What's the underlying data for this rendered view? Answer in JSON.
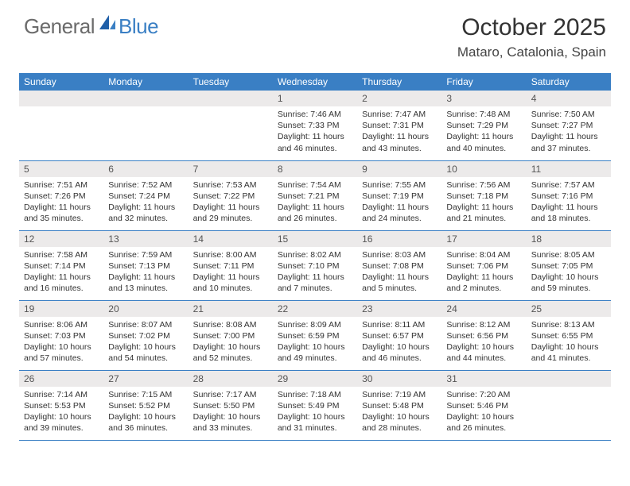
{
  "logo": {
    "text_gray": "General",
    "text_blue": "Blue"
  },
  "title": "October 2025",
  "location": "Mataro, Catalonia, Spain",
  "colors": {
    "header_bg": "#3a7fc4",
    "header_text": "#ffffff",
    "daynum_bg": "#eceaea",
    "row_border": "#3a7fc4",
    "body_text": "#333333",
    "logo_gray": "#6b6b6b",
    "logo_blue": "#3a7fc4",
    "page_bg": "#ffffff"
  },
  "day_headers": [
    "Sunday",
    "Monday",
    "Tuesday",
    "Wednesday",
    "Thursday",
    "Friday",
    "Saturday"
  ],
  "weeks": [
    [
      {
        "num": "",
        "sunrise": "",
        "sunset": "",
        "daylight": ""
      },
      {
        "num": "",
        "sunrise": "",
        "sunset": "",
        "daylight": ""
      },
      {
        "num": "",
        "sunrise": "",
        "sunset": "",
        "daylight": ""
      },
      {
        "num": "1",
        "sunrise": "Sunrise: 7:46 AM",
        "sunset": "Sunset: 7:33 PM",
        "daylight": "Daylight: 11 hours and 46 minutes."
      },
      {
        "num": "2",
        "sunrise": "Sunrise: 7:47 AM",
        "sunset": "Sunset: 7:31 PM",
        "daylight": "Daylight: 11 hours and 43 minutes."
      },
      {
        "num": "3",
        "sunrise": "Sunrise: 7:48 AM",
        "sunset": "Sunset: 7:29 PM",
        "daylight": "Daylight: 11 hours and 40 minutes."
      },
      {
        "num": "4",
        "sunrise": "Sunrise: 7:50 AM",
        "sunset": "Sunset: 7:27 PM",
        "daylight": "Daylight: 11 hours and 37 minutes."
      }
    ],
    [
      {
        "num": "5",
        "sunrise": "Sunrise: 7:51 AM",
        "sunset": "Sunset: 7:26 PM",
        "daylight": "Daylight: 11 hours and 35 minutes."
      },
      {
        "num": "6",
        "sunrise": "Sunrise: 7:52 AM",
        "sunset": "Sunset: 7:24 PM",
        "daylight": "Daylight: 11 hours and 32 minutes."
      },
      {
        "num": "7",
        "sunrise": "Sunrise: 7:53 AM",
        "sunset": "Sunset: 7:22 PM",
        "daylight": "Daylight: 11 hours and 29 minutes."
      },
      {
        "num": "8",
        "sunrise": "Sunrise: 7:54 AM",
        "sunset": "Sunset: 7:21 PM",
        "daylight": "Daylight: 11 hours and 26 minutes."
      },
      {
        "num": "9",
        "sunrise": "Sunrise: 7:55 AM",
        "sunset": "Sunset: 7:19 PM",
        "daylight": "Daylight: 11 hours and 24 minutes."
      },
      {
        "num": "10",
        "sunrise": "Sunrise: 7:56 AM",
        "sunset": "Sunset: 7:18 PM",
        "daylight": "Daylight: 11 hours and 21 minutes."
      },
      {
        "num": "11",
        "sunrise": "Sunrise: 7:57 AM",
        "sunset": "Sunset: 7:16 PM",
        "daylight": "Daylight: 11 hours and 18 minutes."
      }
    ],
    [
      {
        "num": "12",
        "sunrise": "Sunrise: 7:58 AM",
        "sunset": "Sunset: 7:14 PM",
        "daylight": "Daylight: 11 hours and 16 minutes."
      },
      {
        "num": "13",
        "sunrise": "Sunrise: 7:59 AM",
        "sunset": "Sunset: 7:13 PM",
        "daylight": "Daylight: 11 hours and 13 minutes."
      },
      {
        "num": "14",
        "sunrise": "Sunrise: 8:00 AM",
        "sunset": "Sunset: 7:11 PM",
        "daylight": "Daylight: 11 hours and 10 minutes."
      },
      {
        "num": "15",
        "sunrise": "Sunrise: 8:02 AM",
        "sunset": "Sunset: 7:10 PM",
        "daylight": "Daylight: 11 hours and 7 minutes."
      },
      {
        "num": "16",
        "sunrise": "Sunrise: 8:03 AM",
        "sunset": "Sunset: 7:08 PM",
        "daylight": "Daylight: 11 hours and 5 minutes."
      },
      {
        "num": "17",
        "sunrise": "Sunrise: 8:04 AM",
        "sunset": "Sunset: 7:06 PM",
        "daylight": "Daylight: 11 hours and 2 minutes."
      },
      {
        "num": "18",
        "sunrise": "Sunrise: 8:05 AM",
        "sunset": "Sunset: 7:05 PM",
        "daylight": "Daylight: 10 hours and 59 minutes."
      }
    ],
    [
      {
        "num": "19",
        "sunrise": "Sunrise: 8:06 AM",
        "sunset": "Sunset: 7:03 PM",
        "daylight": "Daylight: 10 hours and 57 minutes."
      },
      {
        "num": "20",
        "sunrise": "Sunrise: 8:07 AM",
        "sunset": "Sunset: 7:02 PM",
        "daylight": "Daylight: 10 hours and 54 minutes."
      },
      {
        "num": "21",
        "sunrise": "Sunrise: 8:08 AM",
        "sunset": "Sunset: 7:00 PM",
        "daylight": "Daylight: 10 hours and 52 minutes."
      },
      {
        "num": "22",
        "sunrise": "Sunrise: 8:09 AM",
        "sunset": "Sunset: 6:59 PM",
        "daylight": "Daylight: 10 hours and 49 minutes."
      },
      {
        "num": "23",
        "sunrise": "Sunrise: 8:11 AM",
        "sunset": "Sunset: 6:57 PM",
        "daylight": "Daylight: 10 hours and 46 minutes."
      },
      {
        "num": "24",
        "sunrise": "Sunrise: 8:12 AM",
        "sunset": "Sunset: 6:56 PM",
        "daylight": "Daylight: 10 hours and 44 minutes."
      },
      {
        "num": "25",
        "sunrise": "Sunrise: 8:13 AM",
        "sunset": "Sunset: 6:55 PM",
        "daylight": "Daylight: 10 hours and 41 minutes."
      }
    ],
    [
      {
        "num": "26",
        "sunrise": "Sunrise: 7:14 AM",
        "sunset": "Sunset: 5:53 PM",
        "daylight": "Daylight: 10 hours and 39 minutes."
      },
      {
        "num": "27",
        "sunrise": "Sunrise: 7:15 AM",
        "sunset": "Sunset: 5:52 PM",
        "daylight": "Daylight: 10 hours and 36 minutes."
      },
      {
        "num": "28",
        "sunrise": "Sunrise: 7:17 AM",
        "sunset": "Sunset: 5:50 PM",
        "daylight": "Daylight: 10 hours and 33 minutes."
      },
      {
        "num": "29",
        "sunrise": "Sunrise: 7:18 AM",
        "sunset": "Sunset: 5:49 PM",
        "daylight": "Daylight: 10 hours and 31 minutes."
      },
      {
        "num": "30",
        "sunrise": "Sunrise: 7:19 AM",
        "sunset": "Sunset: 5:48 PM",
        "daylight": "Daylight: 10 hours and 28 minutes."
      },
      {
        "num": "31",
        "sunrise": "Sunrise: 7:20 AM",
        "sunset": "Sunset: 5:46 PM",
        "daylight": "Daylight: 10 hours and 26 minutes."
      },
      {
        "num": "",
        "sunrise": "",
        "sunset": "",
        "daylight": ""
      }
    ]
  ]
}
